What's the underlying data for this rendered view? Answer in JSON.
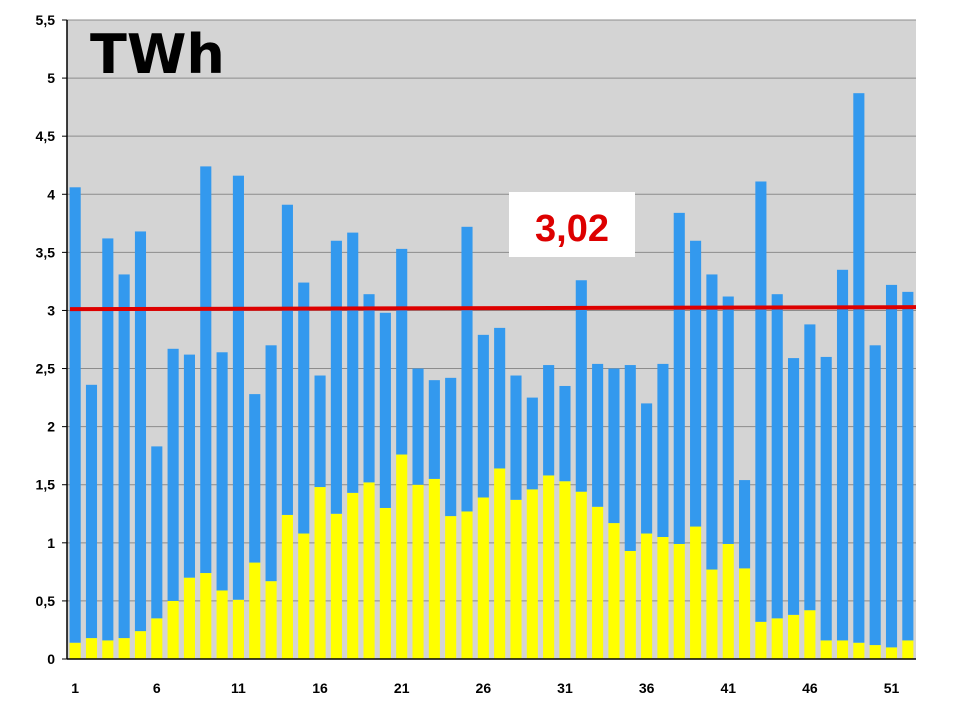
{
  "chart_data": {
    "type": "bar",
    "stacked": true,
    "title": "TWh",
    "xlabel": "",
    "ylabel": "",
    "ylim": [
      0,
      5.5
    ],
    "yticks": [
      "0",
      "0,5",
      "1",
      "1,5",
      "2",
      "2,5",
      "3",
      "3,5",
      "4",
      "4,5",
      "5",
      "5,5"
    ],
    "xtick_labels": [
      "1",
      "6",
      "11",
      "16",
      "21",
      "26",
      "31",
      "36",
      "41",
      "46",
      "51"
    ],
    "grid": true,
    "legend": "none",
    "categories": [
      1,
      2,
      3,
      4,
      5,
      6,
      7,
      8,
      9,
      10,
      11,
      12,
      13,
      14,
      15,
      16,
      17,
      18,
      19,
      20,
      21,
      22,
      23,
      24,
      25,
      26,
      27,
      28,
      29,
      30,
      31,
      32,
      33,
      34,
      35,
      36,
      37,
      38,
      39,
      40,
      41,
      42,
      43,
      44,
      45,
      46,
      47,
      48,
      49,
      50,
      51,
      52
    ],
    "series": [
      {
        "color": "#ffff00",
        "values": [
          0.14,
          0.18,
          0.16,
          0.18,
          0.24,
          0.35,
          0.5,
          0.7,
          0.74,
          0.59,
          0.51,
          0.83,
          0.67,
          1.24,
          1.08,
          1.48,
          1.25,
          1.43,
          1.52,
          1.3,
          1.76,
          1.5,
          1.55,
          1.23,
          1.27,
          1.39,
          1.64,
          1.37,
          1.46,
          1.58,
          1.53,
          1.44,
          1.31,
          1.17,
          0.93,
          1.08,
          1.05,
          0.99,
          1.14,
          0.77,
          0.99,
          0.78,
          0.32,
          0.35,
          0.38,
          0.42,
          0.16,
          0.16,
          0.14,
          0.12,
          0.1,
          0.16
        ]
      },
      {
        "color": "#3399ee",
        "values": [
          3.92,
          2.18,
          3.46,
          3.13,
          3.44,
          1.48,
          2.17,
          1.92,
          3.5,
          2.05,
          3.65,
          1.45,
          2.03,
          2.67,
          2.16,
          0.96,
          2.35,
          2.24,
          1.62,
          1.68,
          1.77,
          1.0,
          0.85,
          1.19,
          2.45,
          1.4,
          1.21,
          1.07,
          0.79,
          0.95,
          0.82,
          1.82,
          1.23,
          1.33,
          1.6,
          1.12,
          1.49,
          2.85,
          2.46,
          2.54,
          2.13,
          0.76,
          3.79,
          2.79,
          2.21,
          2.46,
          2.44,
          3.19,
          4.73,
          2.58,
          3.12,
          3.0
        ]
      }
    ],
    "reference_line": {
      "value": 3.02,
      "label": "3,02",
      "color": "#dd0000"
    },
    "colors": {
      "plot_background": "#d4d4d4",
      "gridline": "#8c8c8c",
      "bottom_series": "#ffff00",
      "top_series": "#3399ee",
      "mean_line": "#dd0000"
    }
  }
}
